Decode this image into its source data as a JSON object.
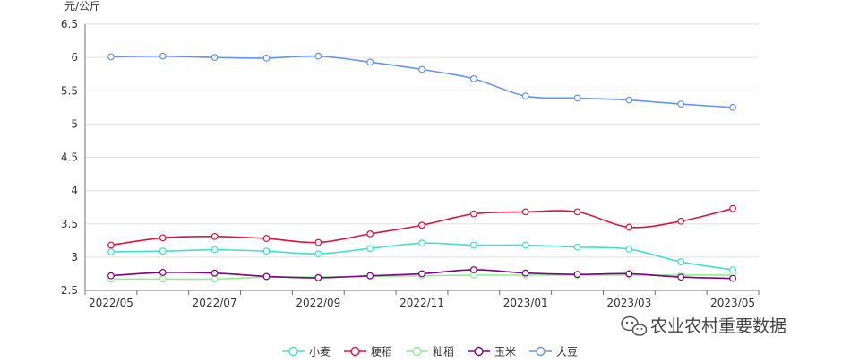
{
  "chart_data": {
    "type": "line",
    "y_unit": "元/公斤",
    "ylim": [
      2.5,
      6.5
    ],
    "y_ticks": [
      "2.5",
      "3",
      "3.5",
      "4",
      "4.5",
      "5",
      "5.5",
      "6",
      "6.5"
    ],
    "x_tick_labels": [
      "2022/05",
      "2022/07",
      "2022/09",
      "2022/11",
      "2023/01",
      "2023/03",
      "2023/05"
    ],
    "x": [
      "2022/05",
      "2022/06",
      "2022/07",
      "2022/08",
      "2022/09",
      "2022/10",
      "2022/11",
      "2022/12",
      "2023/01",
      "2023/02",
      "2023/03",
      "2023/04",
      "2023/05"
    ],
    "grid": true,
    "legend_position": "bottom",
    "series": [
      {
        "name": "小麦",
        "color": "#40e0d0",
        "values": [
          3.08,
          3.09,
          3.11,
          3.09,
          3.05,
          3.13,
          3.21,
          3.18,
          3.18,
          3.15,
          3.12,
          2.93,
          2.81
        ]
      },
      {
        "name": "粳稻",
        "color": "#dc143c",
        "values": [
          3.18,
          3.29,
          3.31,
          3.28,
          3.22,
          3.35,
          3.48,
          3.65,
          3.68,
          3.68,
          3.45,
          3.54,
          3.73
        ]
      },
      {
        "name": "籼稻",
        "color": "#90ee90",
        "values": [
          2.67,
          2.67,
          2.67,
          2.7,
          2.7,
          2.71,
          2.72,
          2.73,
          2.73,
          2.73,
          2.73,
          2.73,
          2.73
        ]
      },
      {
        "name": "玉米",
        "color": "#800080",
        "values": [
          2.72,
          2.77,
          2.76,
          2.71,
          2.69,
          2.72,
          2.75,
          2.81,
          2.76,
          2.74,
          2.75,
          2.7,
          2.68
        ]
      },
      {
        "name": "大豆",
        "color": "#6495ed",
        "values": [
          6.01,
          6.02,
          6.0,
          5.99,
          6.02,
          5.93,
          5.82,
          5.68,
          5.42,
          5.39,
          5.36,
          5.3,
          5.25
        ]
      }
    ]
  },
  "watermark": {
    "text": "农业农村重要数据",
    "icon": "wechat-icon"
  }
}
